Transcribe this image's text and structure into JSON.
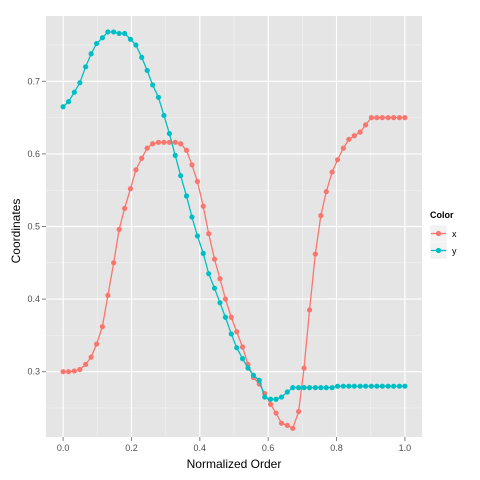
{
  "chart_data": {
    "type": "line",
    "xlabel": "Normalized Order",
    "ylabel": "Coordinates",
    "xlim": [
      -0.05,
      1.05
    ],
    "ylim": [
      0.21,
      0.79
    ],
    "x_ticks": [
      0.0,
      0.2,
      0.4,
      0.6,
      0.8,
      1.0
    ],
    "x_tick_labels": [
      "0.0",
      "0.2",
      "0.4",
      "0.6",
      "0.8",
      "1.0"
    ],
    "y_ticks": [
      0.3,
      0.4,
      0.5,
      0.6,
      0.7
    ],
    "y_tick_labels": [
      "0.3",
      "0.4",
      "0.5",
      "0.6",
      "0.7"
    ],
    "grid": true,
    "legend": {
      "title": "Color",
      "position": "right"
    },
    "series": [
      {
        "name": "x",
        "color": "#F8766D",
        "x": [
          0.0,
          0.016,
          0.033,
          0.049,
          0.066,
          0.082,
          0.098,
          0.115,
          0.131,
          0.148,
          0.164,
          0.18,
          0.197,
          0.213,
          0.23,
          0.246,
          0.262,
          0.279,
          0.295,
          0.311,
          0.328,
          0.344,
          0.361,
          0.377,
          0.393,
          0.41,
          0.426,
          0.443,
          0.459,
          0.475,
          0.492,
          0.508,
          0.525,
          0.541,
          0.557,
          0.574,
          0.59,
          0.607,
          0.623,
          0.639,
          0.656,
          0.672,
          0.689,
          0.705,
          0.721,
          0.738,
          0.754,
          0.77,
          0.787,
          0.803,
          0.82,
          0.836,
          0.852,
          0.869,
          0.885,
          0.902,
          0.918,
          0.934,
          0.951,
          0.967,
          0.984,
          1.0
        ],
        "y": [
          0.3,
          0.3,
          0.301,
          0.303,
          0.31,
          0.32,
          0.338,
          0.362,
          0.405,
          0.45,
          0.496,
          0.525,
          0.552,
          0.578,
          0.594,
          0.608,
          0.614,
          0.616,
          0.616,
          0.616,
          0.616,
          0.614,
          0.605,
          0.585,
          0.562,
          0.528,
          0.49,
          0.455,
          0.428,
          0.4,
          0.375,
          0.355,
          0.334,
          0.31,
          0.292,
          0.283,
          0.27,
          0.255,
          0.243,
          0.229,
          0.226,
          0.222,
          0.245,
          0.305,
          0.385,
          0.462,
          0.515,
          0.548,
          0.575,
          0.592,
          0.608,
          0.62,
          0.625,
          0.63,
          0.64,
          0.65,
          0.65,
          0.65,
          0.65,
          0.65,
          0.65,
          0.65
        ]
      },
      {
        "name": "y",
        "color": "#00BFC4",
        "x": [
          0.0,
          0.016,
          0.033,
          0.049,
          0.066,
          0.082,
          0.098,
          0.115,
          0.131,
          0.148,
          0.164,
          0.18,
          0.197,
          0.213,
          0.23,
          0.246,
          0.262,
          0.279,
          0.295,
          0.311,
          0.328,
          0.344,
          0.361,
          0.377,
          0.393,
          0.41,
          0.426,
          0.443,
          0.459,
          0.475,
          0.492,
          0.508,
          0.525,
          0.541,
          0.557,
          0.574,
          0.59,
          0.607,
          0.623,
          0.639,
          0.656,
          0.672,
          0.689,
          0.705,
          0.721,
          0.738,
          0.754,
          0.77,
          0.787,
          0.803,
          0.82,
          0.836,
          0.852,
          0.869,
          0.885,
          0.902,
          0.918,
          0.934,
          0.951,
          0.967,
          0.984,
          1.0
        ],
        "y": [
          0.665,
          0.672,
          0.685,
          0.698,
          0.72,
          0.738,
          0.752,
          0.76,
          0.768,
          0.768,
          0.766,
          0.766,
          0.758,
          0.75,
          0.733,
          0.715,
          0.695,
          0.678,
          0.653,
          0.628,
          0.598,
          0.57,
          0.542,
          0.513,
          0.487,
          0.463,
          0.435,
          0.415,
          0.395,
          0.375,
          0.352,
          0.333,
          0.318,
          0.305,
          0.295,
          0.288,
          0.265,
          0.262,
          0.262,
          0.265,
          0.272,
          0.278,
          0.278,
          0.278,
          0.278,
          0.278,
          0.278,
          0.278,
          0.278,
          0.28,
          0.28,
          0.28,
          0.28,
          0.28,
          0.28,
          0.28,
          0.28,
          0.28,
          0.28,
          0.28,
          0.28,
          0.28
        ]
      }
    ]
  }
}
